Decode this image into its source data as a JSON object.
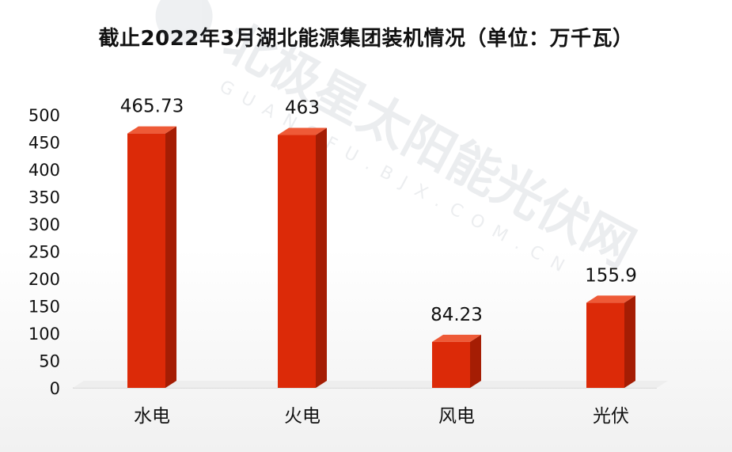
{
  "chart_data": {
    "type": "bar",
    "title": "截止2022年3月湖北能源集团装机情况（单位：万千瓦）",
    "categories": [
      "水电",
      "火电",
      "风电",
      "光伏"
    ],
    "values": [
      465.73,
      463,
      84.23,
      155.9
    ],
    "value_labels": [
      "465.73",
      "463",
      "84.23",
      "155.9"
    ],
    "ylim": [
      0,
      500
    ],
    "yticks": [
      0,
      50,
      100,
      150,
      200,
      250,
      300,
      350,
      400,
      450,
      500
    ],
    "xlabel": "",
    "ylabel": "",
    "grid": false,
    "style": "3d-column",
    "colors": {
      "bar_front": "#dc2a08",
      "bar_side": "#a51d04",
      "bar_top": "#ee5a37"
    }
  },
  "watermark": {
    "main": "北极星太阳能光伏网",
    "sub": "GUANGFU.BJX.COM.CN"
  }
}
